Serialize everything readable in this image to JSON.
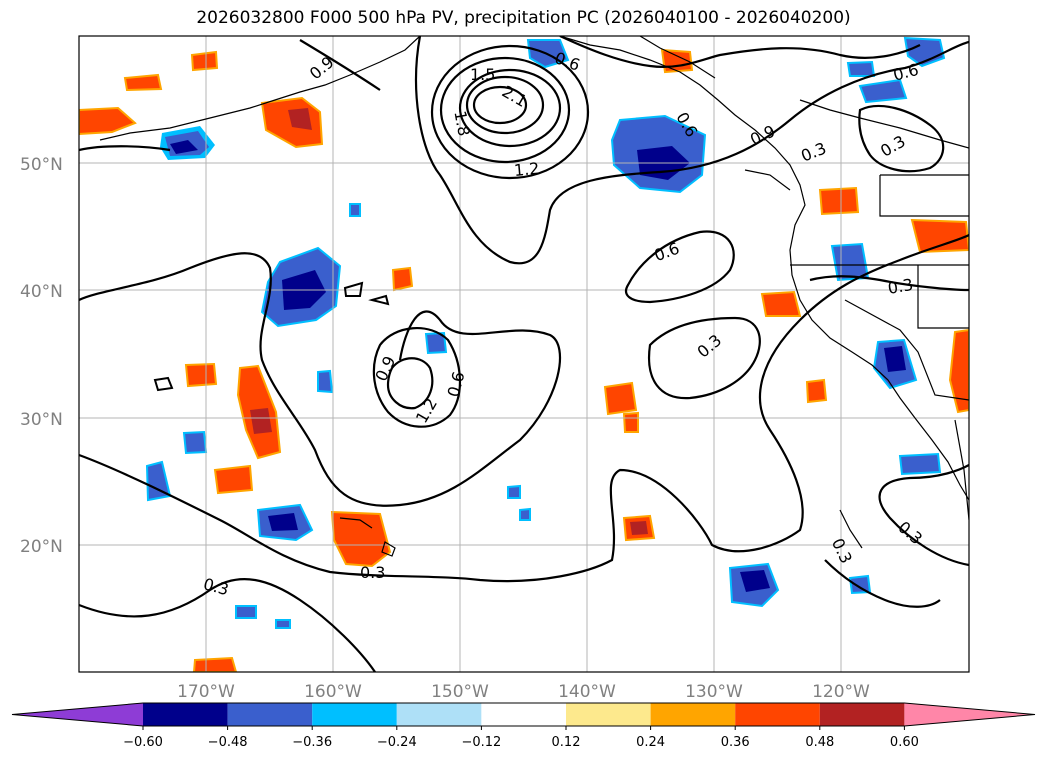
{
  "title": "2026032800 F000 500 hPa PV, precipitation PC (2026040100 - 2026040200)",
  "axes": {
    "lat_labels": [
      "50°N",
      "40°N",
      "30°N",
      "20°N"
    ],
    "lon_labels": [
      "170°W",
      "160°W",
      "150°W",
      "140°W",
      "130°W",
      "120°W"
    ]
  },
  "contour_labels": [
    "0.6",
    "0.9",
    "1.5",
    "2.1",
    "1.8",
    "1.2",
    "0.6",
    "0.9",
    "0.3",
    "0.3",
    "0.6",
    "0.6",
    "0.3",
    "0.3",
    "0.9",
    "1.2",
    "0.6",
    "0.3",
    "0.3",
    "0.3",
    "0.3"
  ],
  "colorbar": {
    "ticks": [
      "−0.60",
      "−0.48",
      "−0.36",
      "−0.24",
      "−0.12",
      "0.12",
      "0.24",
      "0.36",
      "0.48",
      "0.60"
    ],
    "colors": [
      "#8e3cd6",
      "#00008b",
      "#3a5fcd",
      "#00bfff",
      "#aee0f7",
      "#ffffff",
      "#fde98d",
      "#ffa500",
      "#ff4500",
      "#b22222",
      "#ff86a8"
    ]
  },
  "chart_data": {
    "type": "map",
    "title": "2026032800 F000 500 hPa PV, precipitation PC (2026040100 - 2026040200)",
    "lat_range": [
      10,
      60
    ],
    "lon_range": [
      -180,
      -110
    ],
    "pv_contour_levels": [
      0.3,
      0.6,
      0.9,
      1.2,
      1.5,
      1.8,
      2.1
    ],
    "precip_pc_levels": [
      -0.6,
      -0.48,
      -0.36,
      -0.24,
      -0.12,
      0.12,
      0.24,
      0.36,
      0.48,
      0.6
    ],
    "grid": true
  }
}
